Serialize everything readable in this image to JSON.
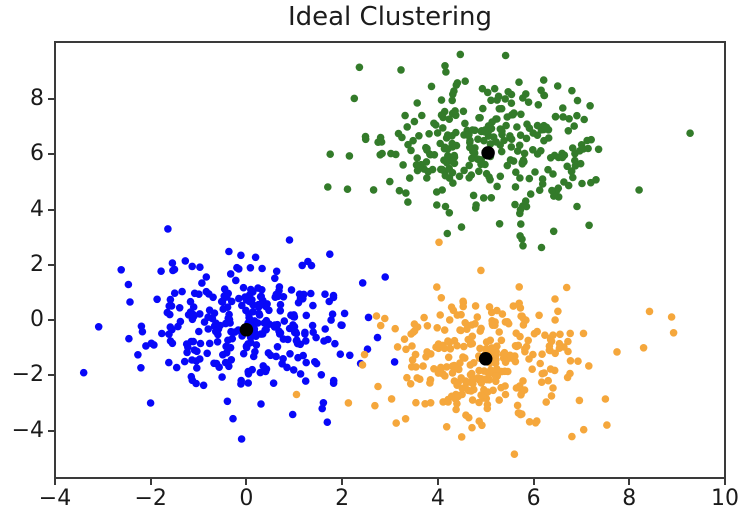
{
  "figure": {
    "background": "#ffffff"
  },
  "chart_data": {
    "type": "scatter",
    "title": "Ideal Clustering",
    "xlabel": "",
    "ylabel": "",
    "xlim": [
      -4,
      10
    ],
    "ylim": [
      -5.71,
      10.06
    ],
    "grid": false,
    "legend": "none",
    "x_ticks": [
      {
        "value": -4,
        "label": "−4"
      },
      {
        "value": -2,
        "label": "−2"
      },
      {
        "value": 0,
        "label": "0"
      },
      {
        "value": 2,
        "label": "2"
      },
      {
        "value": 4,
        "label": "4"
      },
      {
        "value": 6,
        "label": "6"
      },
      {
        "value": 8,
        "label": "8"
      },
      {
        "value": 10,
        "label": "10"
      }
    ],
    "y_ticks": [
      {
        "value": -4,
        "label": "−4"
      },
      {
        "value": -2,
        "label": "−2"
      },
      {
        "value": 0,
        "label": "0"
      },
      {
        "value": 2,
        "label": "2"
      },
      {
        "value": 4,
        "label": "4"
      },
      {
        "value": 6,
        "label": "6"
      },
      {
        "value": 8,
        "label": "8"
      }
    ],
    "series": [
      {
        "name": "cluster-blue",
        "color": "#0808f8",
        "center": [
          0.0,
          -0.35
        ],
        "std": 1.1,
        "n_points": 300,
        "seed": 42,
        "marker_diameter_px": 7.6,
        "outlier_points": [
          [
            -3.4,
            -1.9
          ],
          [
            2.55,
            0.1
          ],
          [
            -0.1,
            -4.3
          ],
          [
            0.9,
            2.9
          ]
        ]
      },
      {
        "name": "cluster-green",
        "color": "#337b2a",
        "center": [
          5.05,
          6.05
        ],
        "std": 1.25,
        "n_points": 300,
        "seed": 7,
        "marker_diameter_px": 7.6,
        "outlier_points": [
          [
            9.27,
            6.76
          ],
          [
            1.75,
            6.0
          ],
          [
            4.15,
            9.2
          ],
          [
            6.8,
            8.3
          ]
        ]
      },
      {
        "name": "cluster-orange",
        "color": "#f5a73c",
        "center": [
          5.0,
          -1.4
        ],
        "std": 1.15,
        "n_points": 300,
        "seed": 13,
        "marker_diameter_px": 7.6,
        "outlier_points": [
          [
            5.6,
            -4.85
          ],
          [
            4.9,
            1.8
          ],
          [
            2.75,
            -2.4
          ],
          [
            8.3,
            -1.0
          ]
        ]
      }
    ],
    "centroids": {
      "name": "cluster-centroids",
      "color": "#000000",
      "marker_diameter_px": 13.5,
      "points": [
        [
          0.0,
          -0.35
        ],
        [
          5.05,
          6.05
        ],
        [
          5.0,
          -1.4
        ]
      ]
    }
  },
  "axes_style": {
    "spine_color": "#3a3a3a",
    "tick_color": "#3a3a3a",
    "tick_label_color": "#1a1a1a",
    "title_color": "#1c1c1c"
  }
}
